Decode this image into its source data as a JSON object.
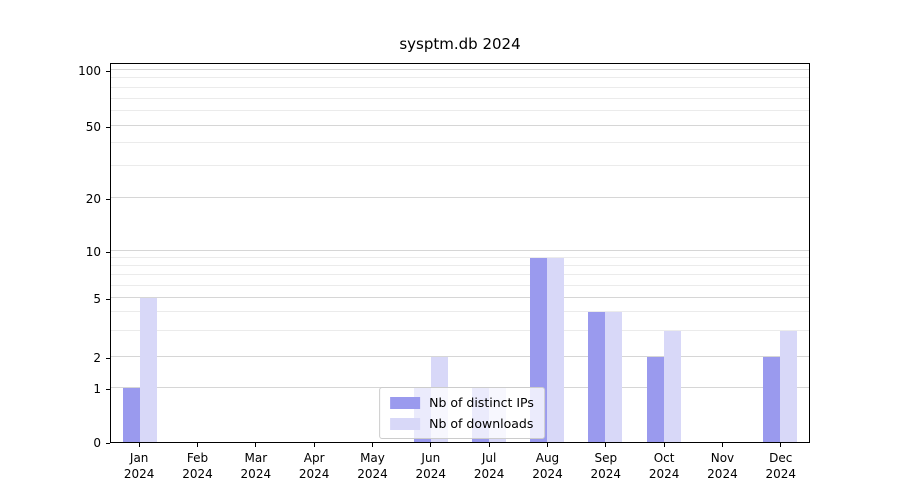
{
  "chart_data": {
    "type": "bar",
    "title": "sysptm.db 2024",
    "categories": [
      "Jan",
      "Feb",
      "Mar",
      "Apr",
      "May",
      "Jun",
      "Jul",
      "Aug",
      "Sep",
      "Oct",
      "Nov",
      "Dec"
    ],
    "year": "2024",
    "series": [
      {
        "name": "Nb of distinct IPs",
        "color": "#9a9aee",
        "values": [
          1,
          0,
          0,
          0,
          0,
          1,
          1,
          9,
          4,
          2,
          0,
          2
        ]
      },
      {
        "name": "Nb of downloads",
        "color": "#d8d8f8",
        "values": [
          5,
          0,
          0,
          0,
          0,
          2,
          1,
          9,
          4,
          3,
          0,
          3
        ]
      }
    ],
    "yticks": [
      0,
      1,
      2,
      5,
      10,
      20,
      50,
      100
    ],
    "minor_gridlines": [
      3,
      4,
      6,
      7,
      8,
      9,
      30,
      40,
      60,
      70,
      80,
      90
    ],
    "scale": "symlog",
    "ylim": [
      0,
      100
    ],
    "xlabel": "",
    "ylabel": "",
    "grid": true,
    "legend_position": "lower center"
  }
}
